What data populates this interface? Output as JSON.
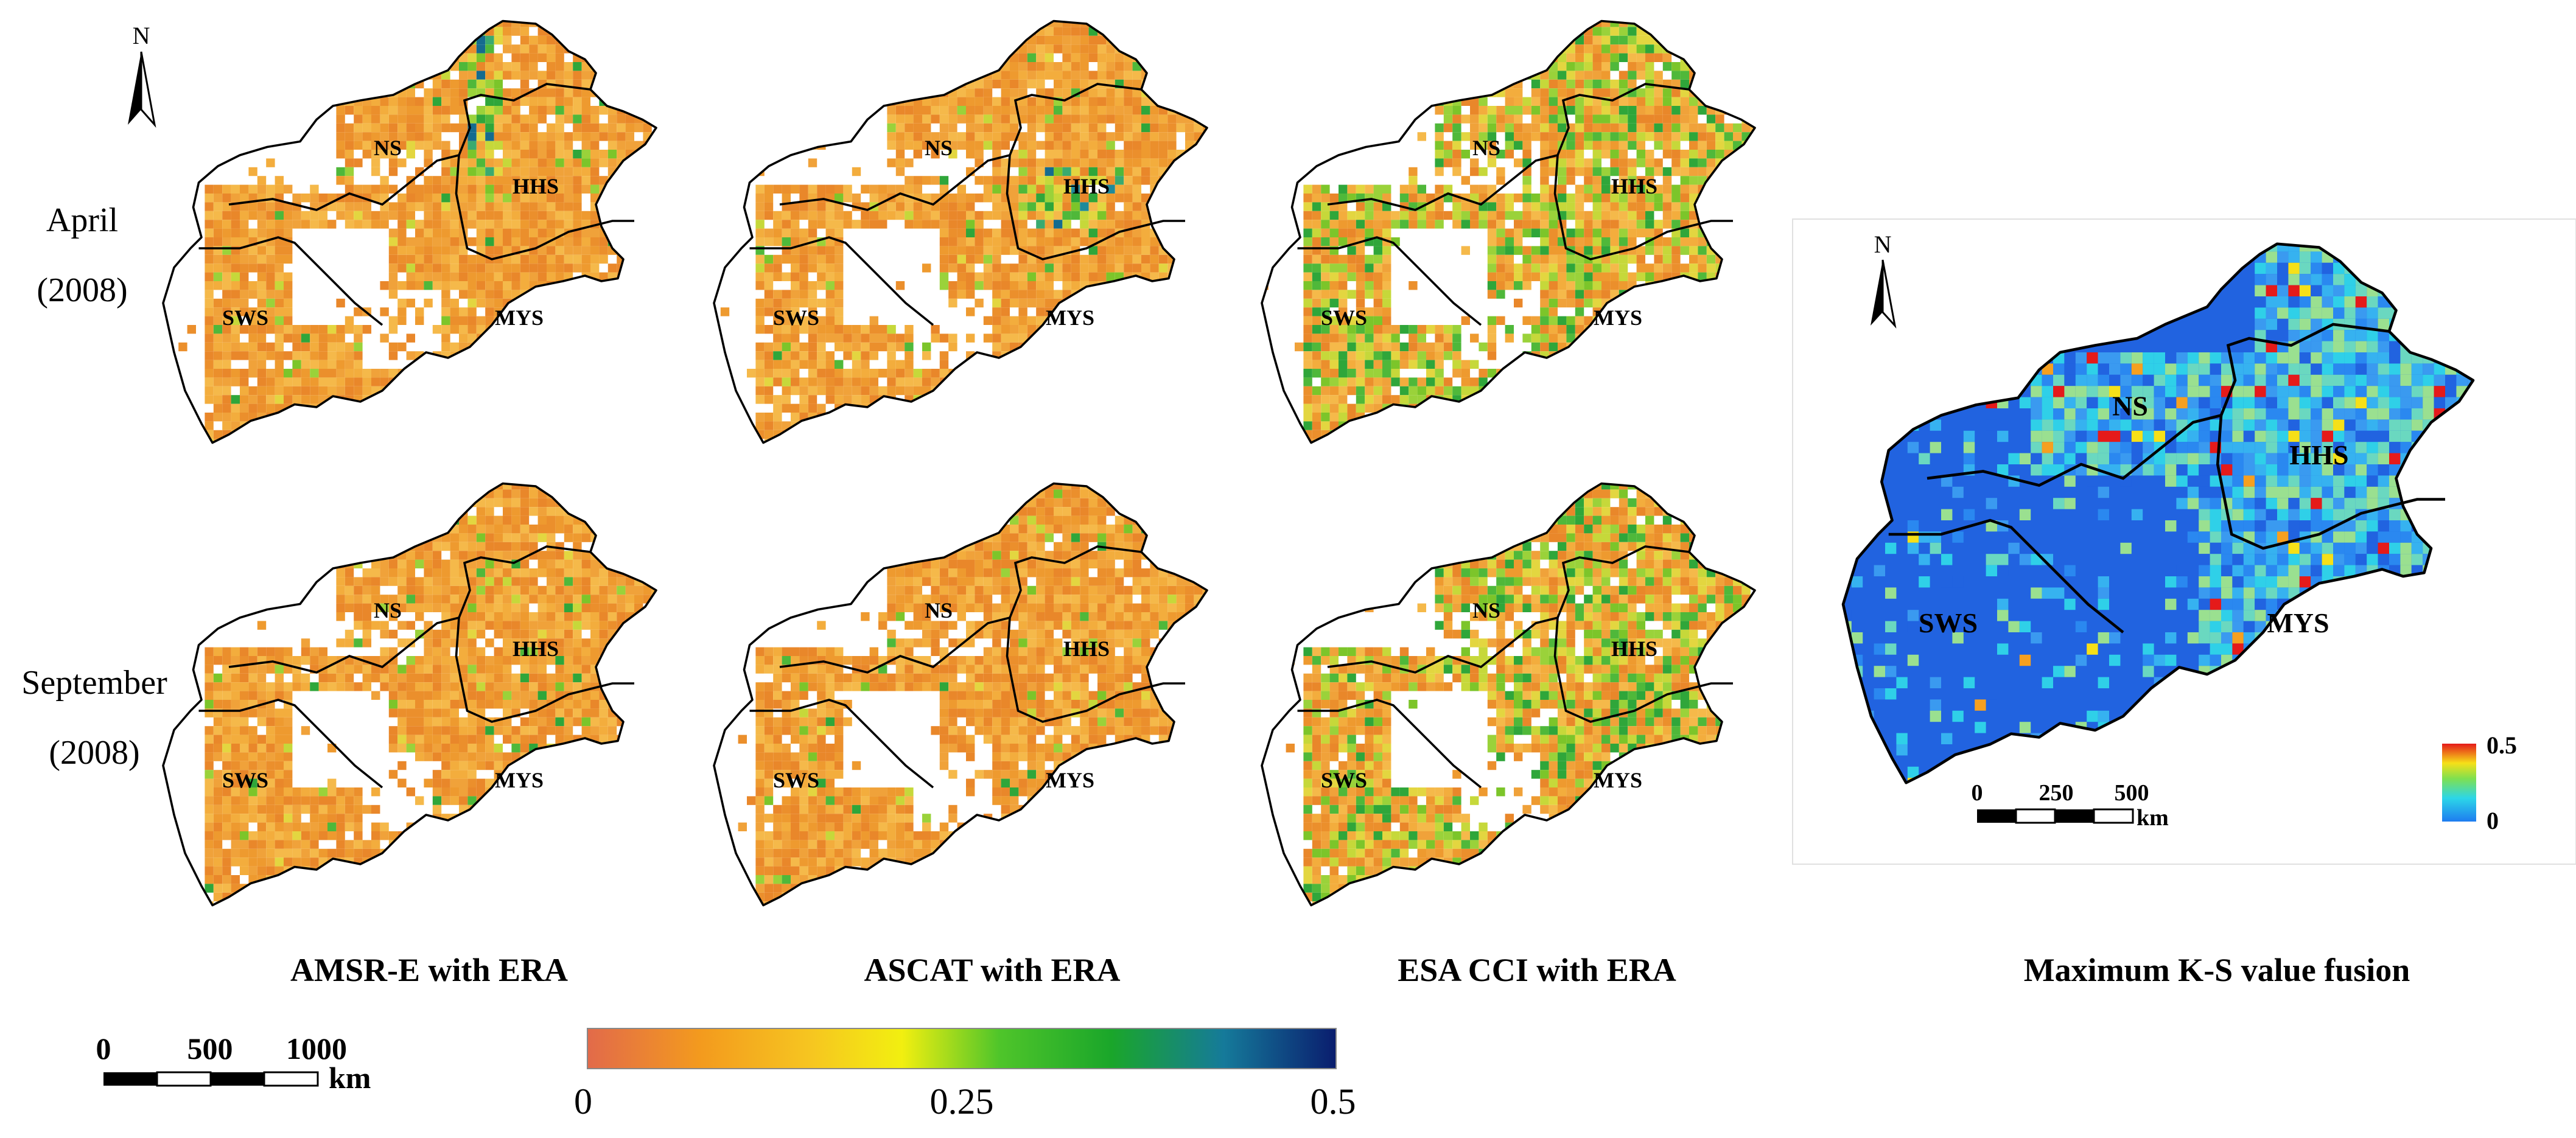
{
  "rows": [
    {
      "label": "April",
      "year": "(2008)"
    },
    {
      "label": "September",
      "year": "(2008)"
    }
  ],
  "columns": [
    {
      "title": "AMSR-E with ERA",
      "style": {
        "apr": "orange",
        "sep": "orange"
      }
    },
    {
      "title": "ASCAT with ERA",
      "style": {
        "apr": "orange",
        "sep": "orange"
      }
    },
    {
      "title": "ESA CCI with ERA",
      "style": {
        "apr": "mixed",
        "sep": "mixed"
      }
    }
  ],
  "regions": [
    "NS",
    "HHS",
    "SWS",
    "MYS"
  ],
  "north_label": "N",
  "fusion": {
    "title": "Maximum K-S value fusion",
    "scale_ticks": [
      "0",
      "250",
      "500"
    ],
    "scale_unit": "km",
    "legend_min": "0",
    "legend_max": "0.5"
  },
  "main_scale": {
    "ticks": [
      "0",
      "500",
      "1000"
    ],
    "unit": "km"
  },
  "colorbar": {
    "ticks": [
      "0",
      "0.25",
      "0.5"
    ],
    "stops": [
      {
        "at": 0,
        "color": "#e26a4a"
      },
      {
        "at": 0.15,
        "color": "#f39a1e"
      },
      {
        "at": 0.3,
        "color": "#f6c620"
      },
      {
        "at": 0.42,
        "color": "#f2ef10"
      },
      {
        "at": 0.55,
        "color": "#4fc52a"
      },
      {
        "at": 0.7,
        "color": "#1aa62a"
      },
      {
        "at": 0.85,
        "color": "#157a9a"
      },
      {
        "at": 1,
        "color": "#0a1d6e"
      }
    ]
  },
  "colors": {
    "orange_base": "#f0a23a",
    "fusion_base": "#2163e0",
    "fusion_dark": "#1c55d1"
  }
}
